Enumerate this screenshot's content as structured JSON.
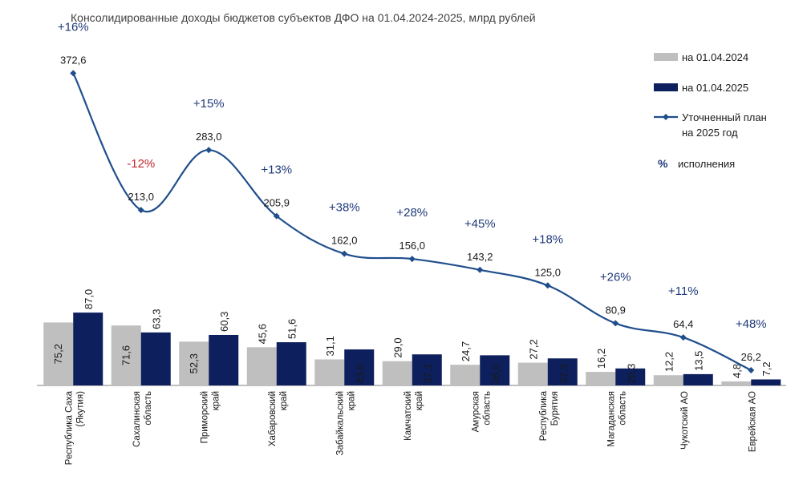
{
  "chart_data": {
    "type": "bar",
    "title": "Консолидированные доходы бюджетов субъектов ДФО на 01.04.2024-2025, млрд рублей",
    "categories": [
      [
        "Республика Саха",
        "(Якутия)"
      ],
      [
        "Сахалинская",
        "область"
      ],
      [
        "Приморский",
        "край"
      ],
      [
        "Хабаровский",
        "край"
      ],
      [
        "Забайкальский",
        "край"
      ],
      [
        "Камчатский",
        "край"
      ],
      [
        "Амурская",
        "область"
      ],
      [
        "Республика",
        "Бурятия"
      ],
      [
        "Магаданская",
        "область"
      ],
      [
        "Чукотский АО"
      ],
      [
        "Еврейская АО"
      ]
    ],
    "series": [
      {
        "name": "на 01.04.2024",
        "kind": "bar",
        "color": "#bfbfbf",
        "values": [
          75.2,
          71.6,
          52.3,
          45.6,
          31.1,
          29.0,
          24.7,
          27.2,
          16.2,
          12.2,
          4.8
        ],
        "labels": [
          "75,2",
          "71,6",
          "52,3",
          "45,6",
          "31,1",
          "29,0",
          "24,7",
          "27,2",
          "16,2",
          "12,2",
          "4,8"
        ]
      },
      {
        "name": "на 01.04.2025",
        "kind": "bar",
        "color": "#0d1f5c",
        "values": [
          87.0,
          63.3,
          60.3,
          51.6,
          43.0,
          37.1,
          36.0,
          32.3,
          20.3,
          13.5,
          7.2
        ],
        "labels": [
          "87,0",
          "63,3",
          "60,3",
          "51,6",
          "43,0",
          "37,1",
          "36,0",
          "32,3",
          "20,3",
          "13,5",
          "7,2"
        ]
      },
      {
        "name": "Уточненный план\nна 2025 год",
        "kind": "line",
        "color": "#1f4e8c",
        "values": [
          372.6,
          213.0,
          283.0,
          205.9,
          162.0,
          156.0,
          143.2,
          125.0,
          80.9,
          64.4,
          26.2
        ],
        "labels": [
          "372,6",
          "213,0",
          "283,0",
          "205,9",
          "162,0",
          "156,0",
          "143,2",
          "125,0",
          "80,9",
          "64,4",
          "26,2"
        ]
      }
    ],
    "percent_labels": [
      "+16%",
      "-12%",
      "+15%",
      "+13%",
      "+38%",
      "+28%",
      "+45%",
      "+18%",
      "+26%",
      "+11%",
      "+48%"
    ],
    "percent_legend": {
      "symbol": "%",
      "text": "исполнения"
    },
    "colors": {
      "positive": "#1f3a7a",
      "negative": "#c0272d",
      "value_label": "#1a1a1a"
    }
  }
}
